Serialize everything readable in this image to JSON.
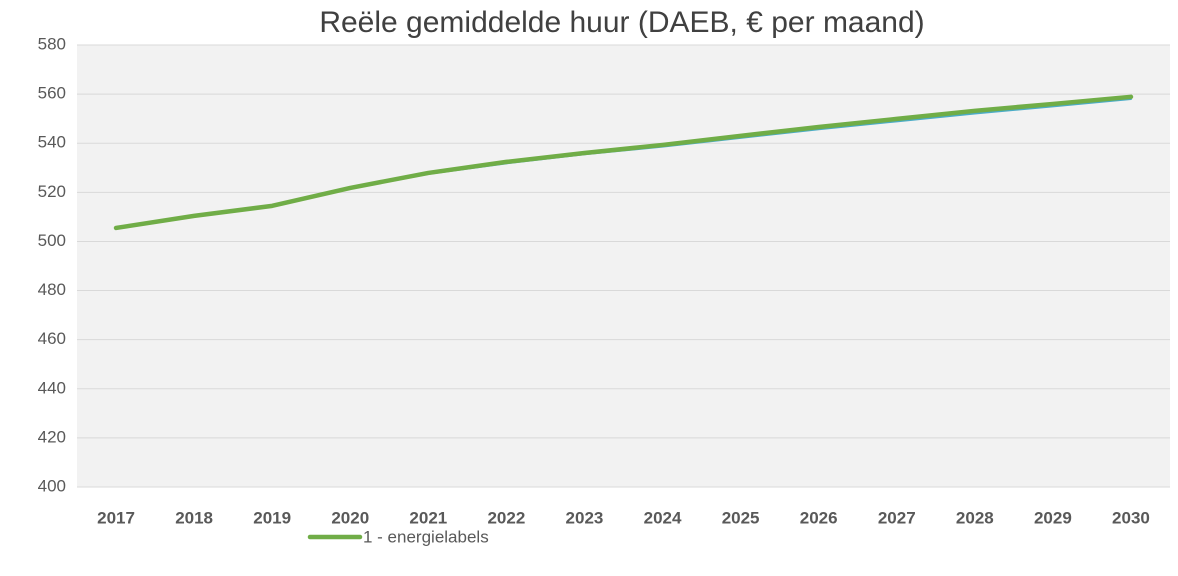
{
  "chart_data": {
    "type": "line",
    "title": "Reële gemiddelde huur (DAEB, € per maand)",
    "categories": [
      "2017",
      "2018",
      "2019",
      "2020",
      "2021",
      "2022",
      "2023",
      "2024",
      "2025",
      "2026",
      "2027",
      "2028",
      "2029",
      "2030"
    ],
    "series": [
      {
        "color": "#4bacc6",
        "values": [
          505.5,
          510.3,
          514.4,
          521.5,
          527.5,
          531.8,
          535.5,
          538.6,
          542.2,
          545.7,
          548.9,
          552.1,
          555.0,
          558.0
        ]
      },
      {
        "name": "1 - energielabels",
        "color": "#70ad47",
        "values": [
          505.5,
          510.4,
          514.5,
          521.8,
          527.9,
          532.4,
          536.0,
          539.3,
          543.0,
          546.6,
          549.9,
          553.2,
          556.0,
          558.9
        ]
      }
    ],
    "ylim": [
      400,
      580
    ],
    "yticks": [
      400,
      420,
      440,
      460,
      480,
      500,
      520,
      540,
      560,
      580
    ],
    "grid": true,
    "legend": "bottom"
  }
}
